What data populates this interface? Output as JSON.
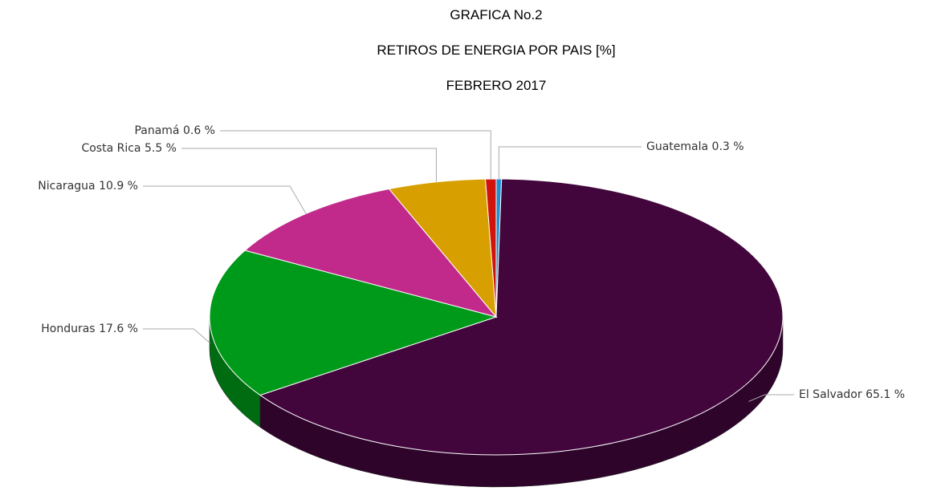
{
  "chart_data": {
    "type": "pie3d",
    "title": [
      "GRAFICA No.2",
      "RETIROS DE ENERGIA POR PAIS [%]",
      "FEBRERO 2017"
    ],
    "categories": [
      "Guatemala",
      "El Salvador",
      "Honduras",
      "Nicaragua",
      "Costa Rica",
      "Panamá"
    ],
    "values": [
      0.3,
      65.1,
      17.6,
      10.9,
      5.5,
      0.6
    ],
    "value_labels": [
      "0.3 %",
      "65.1 %",
      "17.6 %",
      "10.9 %",
      "5.5 %",
      "0.6 %"
    ],
    "colors": [
      "#1f8fd0",
      "#42063d",
      "#009a1a",
      "#c12a8b",
      "#d7a000",
      "#d0140c"
    ]
  }
}
